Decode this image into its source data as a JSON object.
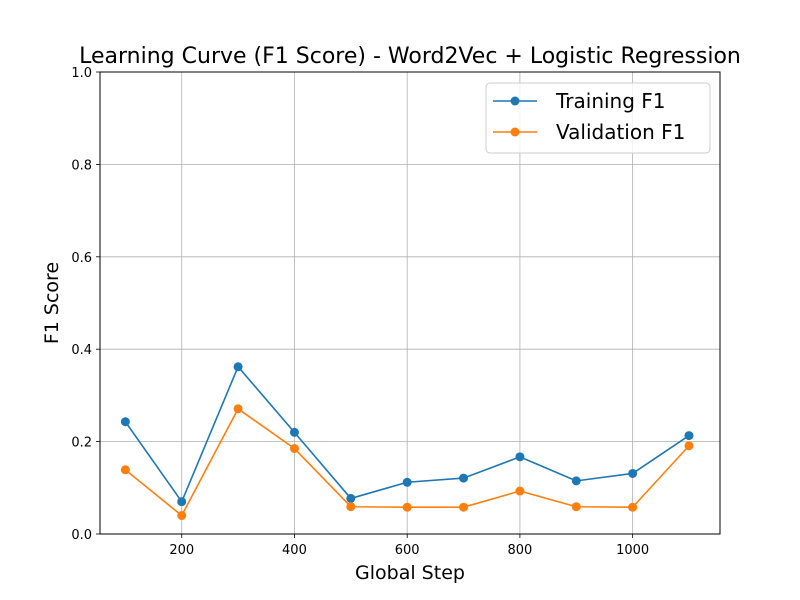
{
  "chart_data": {
    "type": "line",
    "title": "Learning Curve (F1 Score) - Word2Vec + Logistic Regression",
    "xlabel": "Global Step",
    "ylabel": "F1 Score",
    "x": [
      100,
      200,
      300,
      400,
      500,
      600,
      700,
      800,
      900,
      1000,
      1100
    ],
    "xlim": [
      55,
      1155
    ],
    "ylim": [
      0.0,
      1.0
    ],
    "xticks": [
      200,
      400,
      600,
      800,
      1000
    ],
    "xtick_labels": [
      "200",
      "400",
      "600",
      "800",
      "1000"
    ],
    "yticks": [
      0.0,
      0.2,
      0.4,
      0.6,
      0.8,
      1.0
    ],
    "ytick_labels": [
      "0.0",
      "0.2",
      "0.4",
      "0.6",
      "0.8",
      "1.0"
    ],
    "grid": true,
    "legend_position": "top-right",
    "series": [
      {
        "name": "Training F1",
        "color": "#1f77b4",
        "values": [
          0.243,
          0.07,
          0.362,
          0.22,
          0.077,
          0.112,
          0.121,
          0.167,
          0.115,
          0.131,
          0.213
        ]
      },
      {
        "name": "Validation F1",
        "color": "#ff7f0e",
        "values": [
          0.139,
          0.04,
          0.271,
          0.185,
          0.059,
          0.058,
          0.058,
          0.093,
          0.059,
          0.058,
          0.191
        ]
      }
    ]
  }
}
